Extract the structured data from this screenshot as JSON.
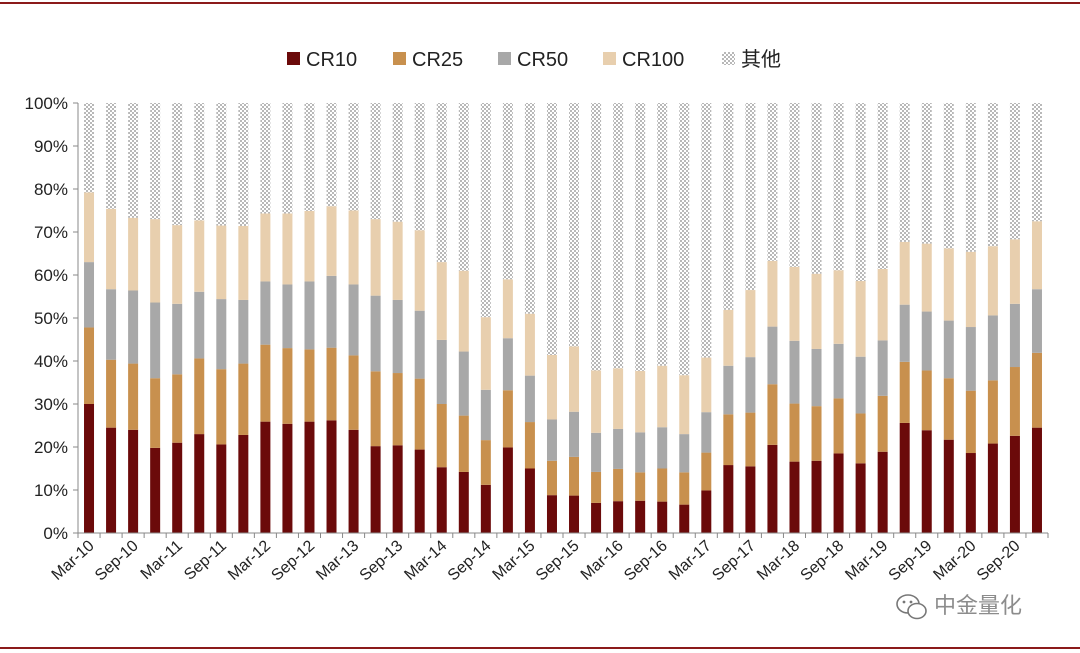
{
  "chart_data": {
    "type": "bar",
    "stacked": true,
    "legend_position": "top",
    "grid": false,
    "ylim": [
      0,
      100
    ],
    "y_ticks": [
      "0%",
      "10%",
      "20%",
      "30%",
      "40%",
      "50%",
      "60%",
      "70%",
      "80%",
      "90%",
      "100%"
    ],
    "categories": [
      "Mar-10",
      "Jun-10",
      "Sep-10",
      "Dec-10",
      "Mar-11",
      "Jun-11",
      "Sep-11",
      "Dec-11",
      "Mar-12",
      "Jun-12",
      "Sep-12",
      "Dec-12",
      "Mar-13",
      "Jun-13",
      "Sep-13",
      "Dec-13",
      "Mar-14",
      "Jun-14",
      "Sep-14",
      "Dec-14",
      "Mar-15",
      "Jun-15",
      "Sep-15",
      "Dec-15",
      "Mar-16",
      "Jun-16",
      "Sep-16",
      "Dec-16",
      "Mar-17",
      "Jun-17",
      "Sep-17",
      "Dec-17",
      "Mar-18",
      "Jun-18",
      "Sep-18",
      "Dec-18",
      "Mar-19",
      "Jun-19",
      "Sep-19",
      "Dec-19",
      "Mar-20",
      "Jun-20",
      "Sep-20",
      "Dec-20"
    ],
    "x_tick_labels": [
      "Mar-10",
      "Sep-10",
      "Mar-11",
      "Sep-11",
      "Mar-12",
      "Sep-12",
      "Mar-13",
      "Sep-13",
      "Mar-14",
      "Sep-14",
      "Mar-15",
      "Sep-15",
      "Mar-16",
      "Sep-16",
      "Mar-17",
      "Sep-17",
      "Mar-18",
      "Sep-18",
      "Mar-19",
      "Sep-19",
      "Mar-20",
      "Sep-20"
    ],
    "series": [
      {
        "name": "CR10",
        "color": "#6b0a0a",
        "values": [
          30,
          24.5,
          24,
          19.8,
          21,
          23,
          20.6,
          22.8,
          25.9,
          25.4,
          25.9,
          26.2,
          24,
          20.2,
          20.4,
          19.4,
          15.3,
          14.2,
          11.2,
          19.9,
          15,
          8.8,
          8.7,
          7,
          7.4,
          7.5,
          7.3,
          6.6,
          9.9,
          15.8,
          15.5,
          20.5,
          16.6,
          16.8,
          18.5,
          16.2,
          18.9,
          25.6,
          23.9,
          21.7,
          18.6,
          20.8,
          22.6,
          24.5
        ]
      },
      {
        "name": "CR25",
        "color": "#c8904e",
        "values": [
          17.8,
          15.8,
          15.4,
          16.2,
          15.9,
          17.6,
          17.5,
          16.6,
          17.9,
          17.6,
          16.8,
          16.9,
          17.3,
          17.4,
          16.8,
          16.5,
          14.7,
          13.1,
          10.4,
          13.3,
          10.8,
          8,
          9,
          7.2,
          7.5,
          6.6,
          7.7,
          7.5,
          8.8,
          11.8,
          12.5,
          14.1,
          13.5,
          12.7,
          12.8,
          11.6,
          13,
          14.2,
          13.9,
          14.3,
          14.5,
          14.7,
          16,
          17.4
        ]
      },
      {
        "name": "CR50",
        "color": "#a8a8a8",
        "values": [
          15.2,
          16.4,
          17,
          17.6,
          16.4,
          15.5,
          16.3,
          14.8,
          14.7,
          14.8,
          15.8,
          16.7,
          16.5,
          17.6,
          17,
          15.8,
          14.9,
          14.9,
          11.7,
          12.1,
          10.8,
          9.6,
          10.5,
          9.1,
          9.3,
          9.3,
          9.6,
          8.9,
          9.4,
          11.3,
          12.9,
          13.4,
          14.6,
          13.3,
          12.7,
          13.2,
          12.9,
          13.3,
          13.7,
          13.4,
          14.8,
          15.1,
          14.7,
          14.8
        ]
      },
      {
        "name": "CR100",
        "color": "#e8cfae",
        "values": [
          16.2,
          18.7,
          16.9,
          19.4,
          18.3,
          16.6,
          17.1,
          17.2,
          15.8,
          16.5,
          16.4,
          16.2,
          17.2,
          17.8,
          18.2,
          18.7,
          18.1,
          18.8,
          16.9,
          13.7,
          14.4,
          15,
          15.2,
          14.5,
          14.1,
          14.3,
          14.3,
          13.7,
          12.7,
          13,
          15.6,
          15.3,
          17.2,
          17.5,
          17.1,
          17.6,
          16.6,
          14.6,
          15.8,
          16.8,
          17.5,
          16.1,
          15,
          15.8
        ]
      },
      {
        "name": "其他",
        "color": "#d4d4d4",
        "pattern": "checker",
        "values": [
          20.8,
          24.6,
          26.7,
          27,
          28.4,
          27.3,
          28.5,
          28.6,
          25.7,
          25.7,
          25.1,
          24,
          25,
          27,
          27.6,
          29.6,
          37,
          39,
          49.8,
          41,
          49,
          58.6,
          56.6,
          62.2,
          61.7,
          62.3,
          61.1,
          63.3,
          59.2,
          48.1,
          43.5,
          36.7,
          38.1,
          39.7,
          38.9,
          41.4,
          38.6,
          32.3,
          32.7,
          33.8,
          34.6,
          33.3,
          31.7,
          27.5
        ]
      }
    ]
  },
  "watermark": {
    "text": "中金量化",
    "icon": "wechat-icon"
  }
}
